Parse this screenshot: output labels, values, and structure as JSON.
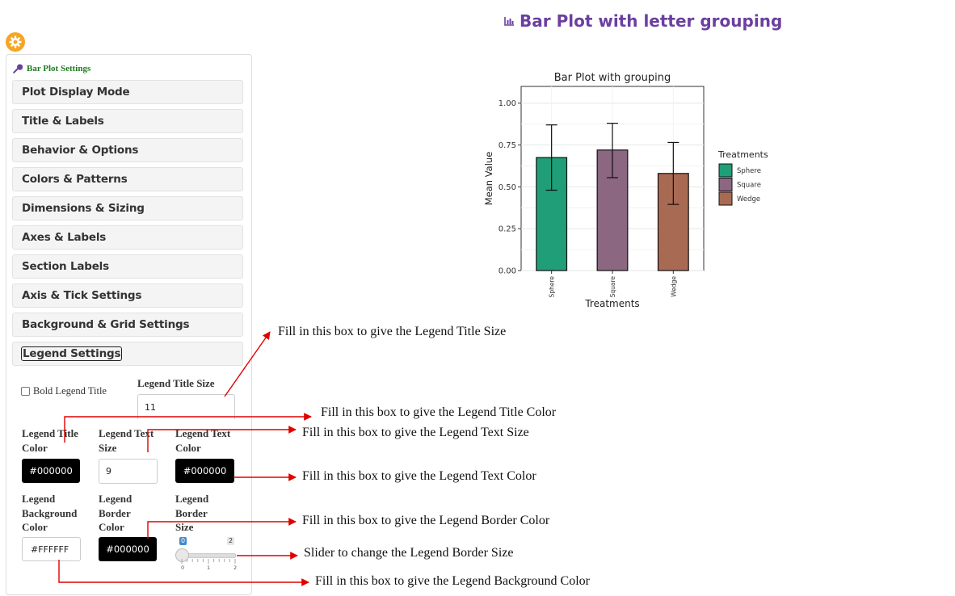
{
  "page_heading": "Bar Plot with letter grouping",
  "sidebar": {
    "title": "Bar Plot Settings",
    "sections": [
      {
        "label": "Plot Display Mode"
      },
      {
        "label": "Title & Labels"
      },
      {
        "label": "Behavior & Options"
      },
      {
        "label": "Colors & Patterns"
      },
      {
        "label": "Dimensions & Sizing"
      },
      {
        "label": "Axes & Labels"
      },
      {
        "label": "Section Labels"
      },
      {
        "label": "Axis & Tick Settings"
      },
      {
        "label": "Background & Grid Settings"
      },
      {
        "label": "Legend Settings"
      }
    ],
    "legend_settings": {
      "bold_legend_title_label": "Bold Legend Title",
      "bold_legend_title_checked": false,
      "legend_title_size_label": "Legend Title Size",
      "legend_title_size_value": "11",
      "legend_title_color_label": "Legend Title Color",
      "legend_title_color_value": "#000000",
      "legend_text_size_label": "Legend Text Size",
      "legend_text_size_value": "9",
      "legend_text_color_label": "Legend Text Color",
      "legend_text_color_value": "#000000",
      "legend_background_color_label": "Legend Background Color",
      "legend_background_color_value": "#FFFFFF",
      "legend_border_color_label": "Legend Border Color",
      "legend_border_color_value": "#000000",
      "legend_border_size_label": "Legend Border Size",
      "legend_border_size_value": 0,
      "legend_border_size_min": 0,
      "legend_border_size_max": 2,
      "legend_border_size_ticks": [
        "0",
        "1",
        "2"
      ]
    }
  },
  "chart_data": {
    "type": "bar",
    "title": "Bar Plot with grouping",
    "xlabel": "Treatments",
    "ylabel": "Mean Value",
    "categories": [
      "Sphere",
      "Square",
      "Wedge"
    ],
    "values": [
      0.675,
      0.72,
      0.58
    ],
    "error_low": [
      0.48,
      0.555,
      0.395
    ],
    "error_high": [
      0.87,
      0.88,
      0.765
    ],
    "colors": [
      "#1f9e77",
      "#8b6781",
      "#a86a52"
    ],
    "ylim": [
      0,
      1.1
    ],
    "yticks": [
      "0.00",
      "0.25",
      "0.50",
      "0.75",
      "1.00"
    ],
    "ytick_values": [
      0,
      0.25,
      0.5,
      0.75,
      1.0
    ],
    "legend_title": "Treatments",
    "legend_position": "right",
    "grid": true
  },
  "annotations": [
    {
      "text": "Fill in this box to give the Legend Title Size"
    },
    {
      "text": "Fill in this box to give the Legend Title Color"
    },
    {
      "text": "Fill in this box to give the Legend Text Size"
    },
    {
      "text": "Fill in this box to give the Legend Text Color"
    },
    {
      "text": "Fill in this box to give the Legend Border Color"
    },
    {
      "text": "Slider to change the Legend Border Size"
    },
    {
      "text": "Fill in this box to give the Legend Background Color"
    }
  ],
  "colors": {
    "accent_purple": "#6b3fa0",
    "settings_title_green": "#1e7b1e",
    "gear_orange": "#f5a623",
    "arrow_red": "#e00000",
    "slider_badge_blue": "#428bca"
  }
}
